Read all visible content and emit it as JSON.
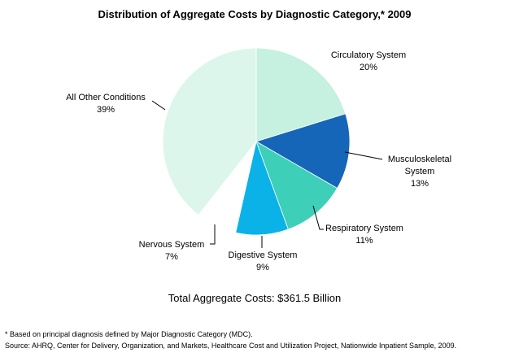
{
  "chart_data": {
    "type": "pie",
    "title": "Distribution of Aggregate Costs by Diagnostic Category,* 2009",
    "slices": [
      {
        "name": "Circulatory System",
        "name_lines": [
          "Circulatory System"
        ],
        "value": 20,
        "value_label": "20%",
        "color": "#c6f0e0"
      },
      {
        "name": "Musculoskeletal System",
        "name_lines": [
          "Musculoskeletal",
          "System"
        ],
        "value": 13,
        "value_label": "13%",
        "color": "#1565b8"
      },
      {
        "name": "Respiratory System",
        "name_lines": [
          "Respiratory System"
        ],
        "value": 11,
        "value_label": "11%",
        "color": "#3ecfb8"
      },
      {
        "name": "Digestive System",
        "name_lines": [
          "Digestive System"
        ],
        "value": 9,
        "value_label": "9%",
        "color": "#0ab2e8"
      },
      {
        "name": "Nervous System",
        "name_lines": [
          "Nervous System"
        ],
        "value": 7,
        "value_label": "7%",
        "color": "#ffffff"
      },
      {
        "name": "All Other Conditions",
        "name_lines": [
          "All Other Conditions"
        ],
        "value": 39,
        "value_label": "39%",
        "color": "#dcf6ec"
      }
    ],
    "legend": "none"
  },
  "total_label": "Total Aggregate Costs: $361.5  Billion",
  "footnotes": [
    "* Based on principal diagnosis defined by Major Diagnostic Category (MDC).",
    "Source: AHRQ, Center for Delivery, Organization, and Markets, Healthcare Cost and Utilization Project, Nationwide Inpatient Sample, 2009."
  ]
}
